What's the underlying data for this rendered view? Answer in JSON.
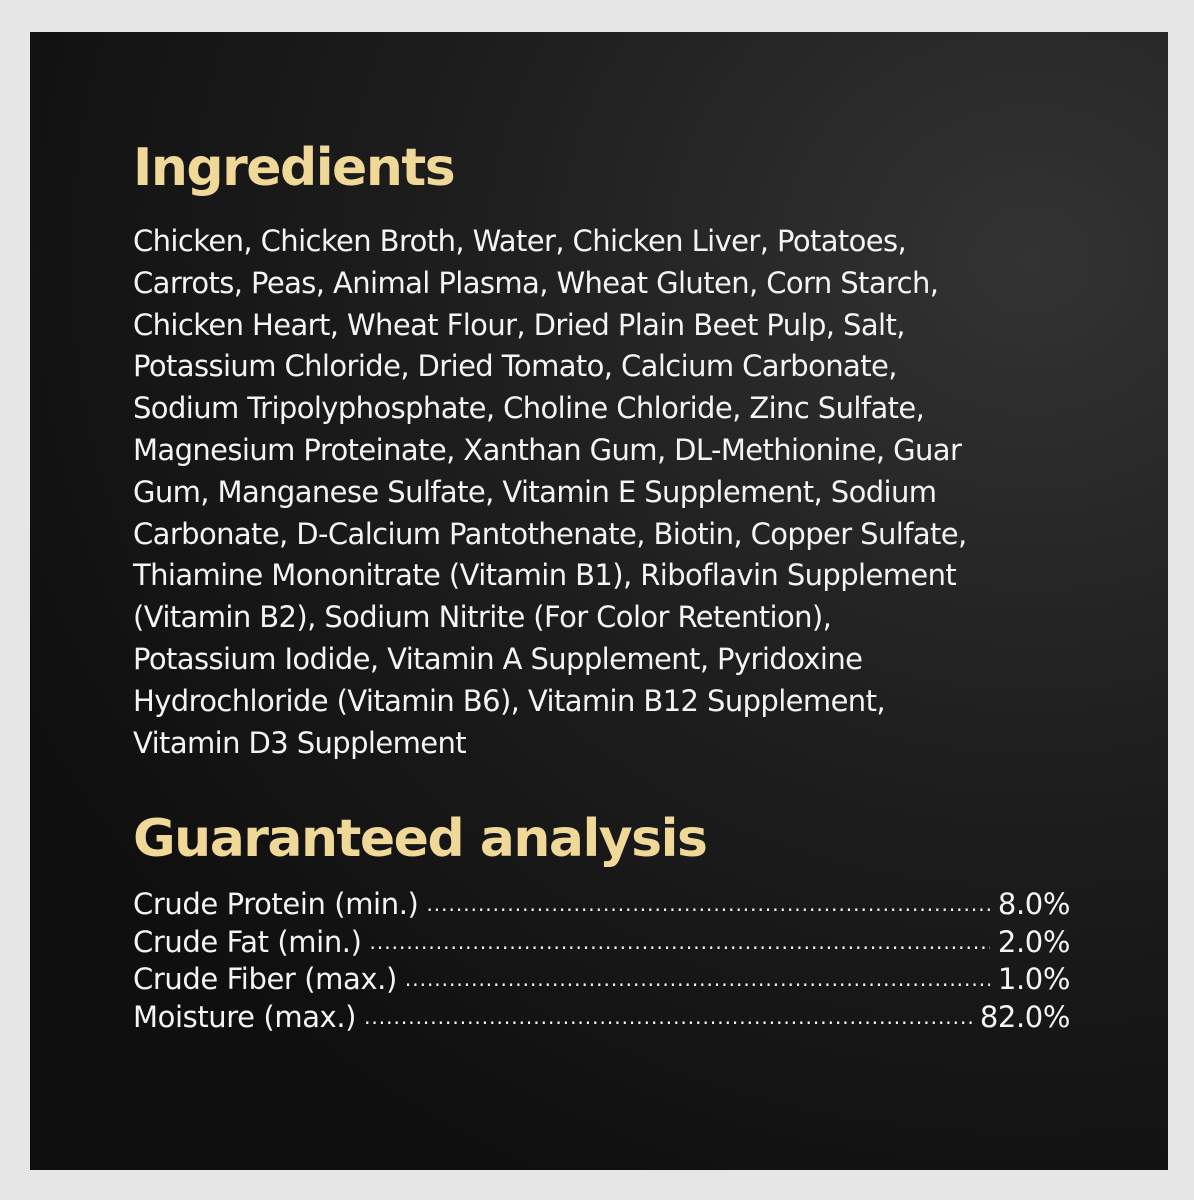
{
  "ingredients": {
    "heading": "Ingredients",
    "lines": [
      "Chicken, Chicken Broth, Water, Chicken Liver, Potatoes,",
      "Carrots, Peas, Animal Plasma, Wheat Gluten, Corn Starch,",
      "Chicken Heart, Wheat Flour, Dried Plain Beet Pulp, Salt,",
      "Potassium Chloride, Dried Tomato, Calcium Carbonate,",
      "Sodium Tripolyphosphate, Choline Chloride, Zinc Sulfate,",
      "Magnesium Proteinate, Xanthan Gum, DL-Methionine, Guar",
      "Gum, Manganese Sulfate, Vitamin E Supplement, Sodium",
      "Carbonate, D-Calcium Pantothenate, Biotin, Copper Sulfate,",
      "Thiamine Mononitrate (Vitamin B1), Riboflavin Supplement",
      "(Vitamin B2), Sodium Nitrite (For Color Retention),",
      "Potassium Iodide, Vitamin A Supplement, Pyridoxine",
      "Hydrochloride (Vitamin B6), Vitamin B12 Supplement,",
      "Vitamin D3 Supplement"
    ]
  },
  "analysis": {
    "heading": "Guaranteed analysis",
    "rows": [
      {
        "label": "Crude Protein (min.)",
        "value": "8.0%"
      },
      {
        "label": "Crude Fat (min.)",
        "value": "2.0%"
      },
      {
        "label": "Crude Fiber (max.)",
        "value": "1.0%"
      },
      {
        "label": "Moisture (max.)",
        "value": "82.0%"
      }
    ]
  },
  "colors": {
    "heading": "#f0d898",
    "text": "#f4f4f4",
    "background": "#151515"
  }
}
